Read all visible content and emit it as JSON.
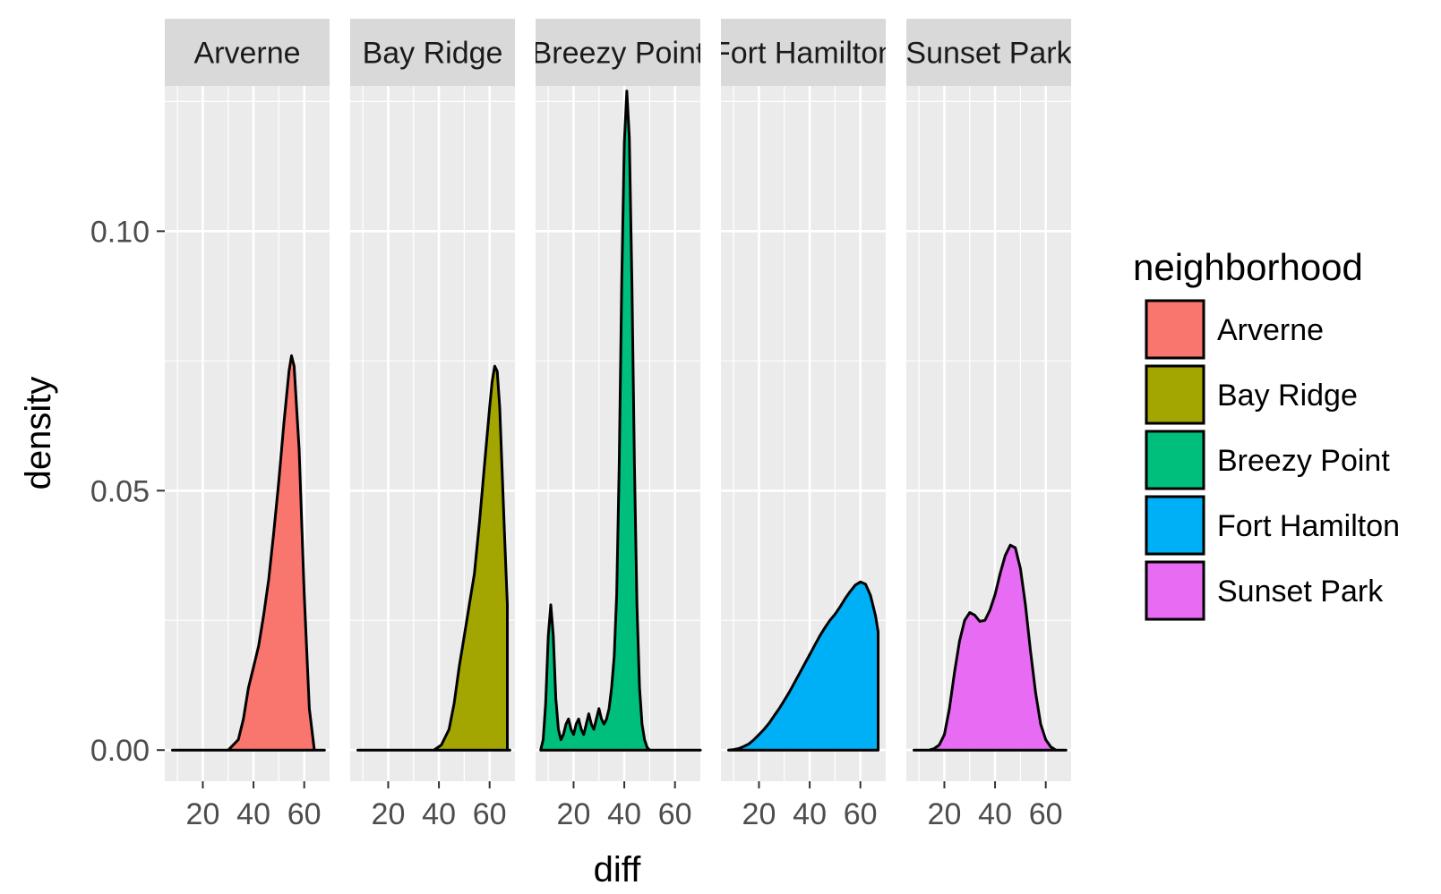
{
  "chart_data": {
    "type": "area",
    "subtype": "density, faceted",
    "title": "",
    "xlabel": "diff",
    "ylabel": "density",
    "xlim": [
      5,
      70
    ],
    "ylim": [
      -0.006,
      0.128
    ],
    "x_ticks": [
      20,
      40,
      60
    ],
    "y_ticks": [
      0.0,
      0.05,
      0.1
    ],
    "y_tick_labels": [
      "0.00",
      "0.05",
      "0.10"
    ],
    "grid": true,
    "legend": {
      "title": "neighborhood",
      "position": "right"
    },
    "series": [
      {
        "name": "Arverne",
        "color": "#F8766D",
        "x": [
          8,
          30,
          34,
          36,
          38,
          40,
          42,
          44,
          46,
          48,
          50,
          52,
          54,
          55,
          56,
          58,
          60,
          62,
          64,
          68
        ],
        "y": [
          0,
          0,
          0.002,
          0.006,
          0.012,
          0.016,
          0.02,
          0.026,
          0.033,
          0.042,
          0.052,
          0.063,
          0.073,
          0.076,
          0.074,
          0.058,
          0.03,
          0.008,
          0,
          0
        ]
      },
      {
        "name": "Bay Ridge",
        "color": "#A3A500",
        "x": [
          8,
          38,
          41,
          44,
          46,
          48,
          50,
          52,
          54,
          56,
          58,
          60,
          61,
          62,
          63,
          64,
          66,
          67,
          67.01,
          68
        ],
        "y": [
          0,
          0,
          0.001,
          0.004,
          0.009,
          0.016,
          0.022,
          0.028,
          0.034,
          0.044,
          0.055,
          0.066,
          0.071,
          0.074,
          0.073,
          0.066,
          0.04,
          0.028,
          0,
          0
        ]
      },
      {
        "name": "Breezy Point",
        "color": "#00BF7D",
        "x": [
          7,
          8,
          9,
          10,
          11,
          12,
          13,
          14,
          15,
          16,
          17,
          18,
          19,
          20,
          21,
          22,
          23,
          24,
          25,
          26,
          27,
          28,
          29,
          30,
          31,
          32,
          33,
          34,
          35,
          36,
          37,
          38,
          39,
          40,
          41,
          42,
          43,
          44,
          45,
          46,
          47,
          48,
          49,
          50,
          51,
          52,
          56,
          64,
          70
        ],
        "y": [
          0.0,
          0.002,
          0.009,
          0.022,
          0.028,
          0.022,
          0.01,
          0.004,
          0.002,
          0.003,
          0.005,
          0.006,
          0.004,
          0.003,
          0.005,
          0.006,
          0.004,
          0.003,
          0.005,
          0.007,
          0.005,
          0.004,
          0.006,
          0.008,
          0.006,
          0.005,
          0.006,
          0.008,
          0.012,
          0.018,
          0.03,
          0.055,
          0.09,
          0.117,
          0.127,
          0.118,
          0.09,
          0.055,
          0.028,
          0.012,
          0.005,
          0.002,
          0.0005,
          0,
          0,
          0,
          0,
          0,
          0
        ]
      },
      {
        "name": "Fort Hamilton",
        "color": "#00B0F6",
        "x": [
          8,
          10,
          12,
          14,
          16,
          18,
          20,
          22,
          24,
          26,
          28,
          30,
          32,
          34,
          36,
          38,
          40,
          42,
          44,
          46,
          48,
          50,
          52,
          54,
          56,
          58,
          60,
          62,
          64,
          66,
          67,
          67.01
        ],
        "y": [
          0,
          0.0001,
          0.0003,
          0.0007,
          0.0012,
          0.002,
          0.003,
          0.004,
          0.0052,
          0.0066,
          0.008,
          0.0096,
          0.0112,
          0.013,
          0.0148,
          0.0166,
          0.0184,
          0.0202,
          0.022,
          0.0236,
          0.025,
          0.0262,
          0.0276,
          0.0292,
          0.0306,
          0.0318,
          0.0324,
          0.032,
          0.0298,
          0.0258,
          0.0228,
          0
        ]
      },
      {
        "name": "Sunset Park",
        "color": "#E76BF3",
        "x": [
          8,
          14,
          16,
          18,
          20,
          22,
          24,
          26,
          28,
          30,
          32,
          34,
          36,
          38,
          40,
          42,
          44,
          46,
          48,
          50,
          52,
          54,
          56,
          58,
          60,
          62,
          64,
          68
        ],
        "y": [
          0,
          0,
          0.0003,
          0.001,
          0.003,
          0.008,
          0.015,
          0.021,
          0.025,
          0.0265,
          0.026,
          0.0248,
          0.025,
          0.027,
          0.03,
          0.034,
          0.0375,
          0.0395,
          0.039,
          0.035,
          0.028,
          0.019,
          0.011,
          0.005,
          0.002,
          0.0006,
          0,
          0
        ]
      }
    ]
  }
}
